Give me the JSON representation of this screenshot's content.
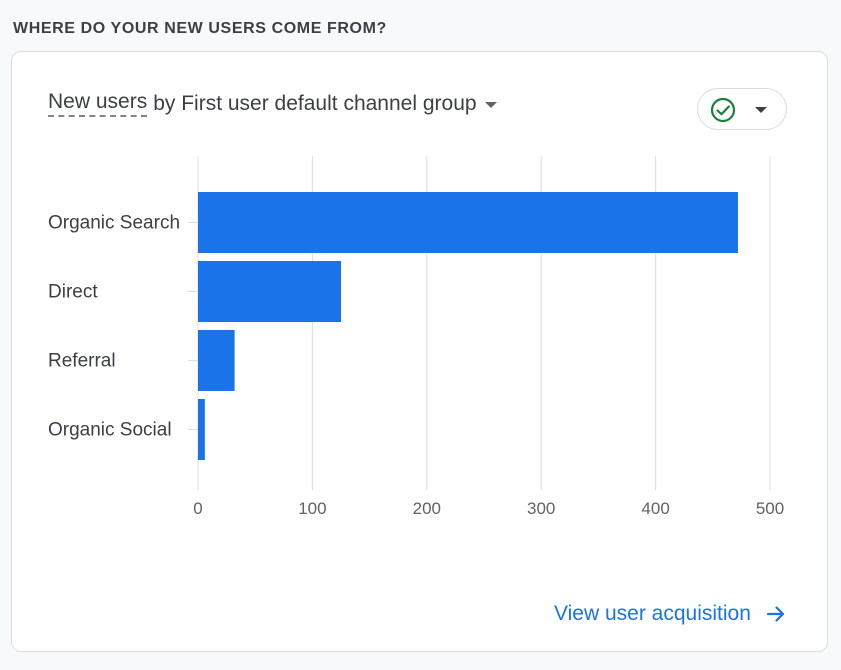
{
  "section": {
    "title": "WHERE DO YOUR NEW USERS COME FROM?"
  },
  "card": {
    "metric_label": "New users",
    "dimension_label": "by First user default channel group",
    "status_icon": "check-circle-icon",
    "link_label": "View user acquisition",
    "link_icon": "arrow-right-icon"
  },
  "colors": {
    "bar": "#1a73e8",
    "link": "#1a73e8",
    "check": "#188038",
    "grid": "#dadce0"
  },
  "chart_data": {
    "type": "bar",
    "orientation": "horizontal",
    "categories": [
      "Organic Search",
      "Direct",
      "Referral",
      "Organic Social"
    ],
    "values": [
      472,
      125,
      32,
      6
    ],
    "xticks": [
      0,
      100,
      200,
      300,
      400,
      500
    ],
    "xlim": [
      0,
      500
    ],
    "grid": true,
    "legend": "none"
  }
}
